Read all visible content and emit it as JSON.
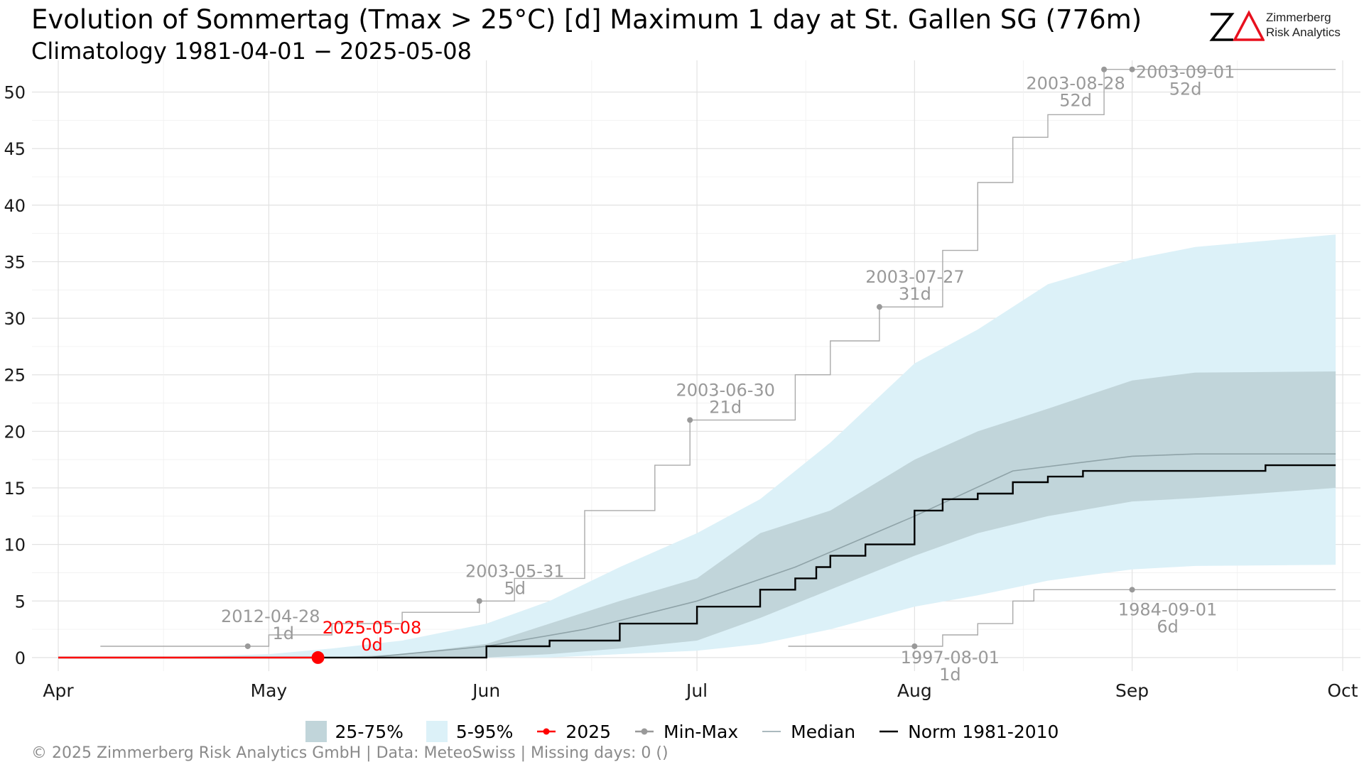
{
  "header": {
    "title": "Evolution of Sommertag (Tmax > 25°C) [d] Maximum 1 day at St. Gallen  SG (776m)",
    "subtitle": "Climatology 1981-04-01 − 2025-05-08"
  },
  "logo": {
    "mark": "ZΔ",
    "line1": "Zimmerberg",
    "line2": "Risk Analytics",
    "colors": {
      "z": "#000000",
      "delta": "#e8101e"
    }
  },
  "footer": {
    "text": "©  2025 Zimmerberg Risk Analytics GmbH | Data: MeteoSwiss | Missing days: 0 ()"
  },
  "legend": [
    {
      "label": "25-75%",
      "kind": "box",
      "color": "#c1d5da"
    },
    {
      "label": "5-95%",
      "kind": "box",
      "color": "#dcf1f8"
    },
    {
      "label": "2025",
      "kind": "point-line",
      "color": "#ff0000"
    },
    {
      "label": "Min-Max",
      "kind": "point-line",
      "color": "#999999"
    },
    {
      "label": "Median",
      "kind": "line",
      "color": "#8fa3a8"
    },
    {
      "label": "Norm 1981-2010",
      "kind": "line",
      "color": "#000000"
    }
  ],
  "chart_data": {
    "type": "area",
    "x_axis": {
      "ticks": [
        {
          "label": "Apr",
          "date": "04-01"
        },
        {
          "label": "May",
          "date": "05-01"
        },
        {
          "label": "Jun",
          "date": "06-01"
        },
        {
          "label": "Jul",
          "date": "07-01"
        },
        {
          "label": "Aug",
          "date": "08-01"
        },
        {
          "label": "Sep",
          "date": "09-01"
        },
        {
          "label": "Oct",
          "date": "10-01"
        }
      ],
      "range": [
        "04-01",
        "10-01"
      ]
    },
    "y_axis": {
      "range": [
        -1.2,
        52.8
      ],
      "ticks": [
        0,
        5,
        10,
        15,
        20,
        25,
        30,
        35,
        40,
        45,
        50
      ]
    },
    "grid": true,
    "legend_position": "bottom",
    "colors": {
      "band_5_95": "#dcf1f8",
      "band_25_75": "#c1d5da",
      "median": "#8fa3a8",
      "norm": "#000000",
      "minmax": "#aaaaaa",
      "minmax_point": "#999999",
      "current": "#ff0000",
      "annotation": "#999999"
    },
    "band_5_95": {
      "x": [
        "04-15",
        "05-01",
        "05-10",
        "05-20",
        "06-01",
        "06-10",
        "06-20",
        "07-01",
        "07-10",
        "07-20",
        "08-01",
        "08-10",
        "08-20",
        "09-01",
        "09-10",
        "09-30"
      ],
      "lower": [
        0,
        0,
        0,
        0,
        0,
        0,
        0.3,
        0.6,
        1.2,
        2.5,
        4.5,
        5.5,
        6.8,
        7.8,
        8.1,
        8.2
      ],
      "upper": [
        0,
        0.3,
        0.8,
        1.5,
        3,
        5,
        8,
        11,
        14,
        19,
        26,
        29,
        33,
        35.2,
        36.3,
        37.4
      ]
    },
    "band_25_75": {
      "x": [
        "05-10",
        "05-20",
        "06-01",
        "06-10",
        "06-20",
        "07-01",
        "07-10",
        "07-20",
        "08-01",
        "08-10",
        "08-20",
        "09-01",
        "09-10",
        "09-30"
      ],
      "lower": [
        0,
        0,
        0,
        0.3,
        0.8,
        1.5,
        3.5,
        6,
        9,
        11,
        12.5,
        13.8,
        14.1,
        15
      ],
      "upper": [
        0,
        0.3,
        1.2,
        3,
        5,
        7,
        11,
        13,
        17.5,
        20,
        22,
        24.5,
        25.2,
        25.3
      ]
    },
    "median": {
      "x": [
        "05-15",
        "06-01",
        "06-15",
        "07-01",
        "07-15",
        "08-01",
        "08-15",
        "09-01",
        "09-10",
        "09-30"
      ],
      "y": [
        0,
        1,
        2.5,
        5,
        8,
        12.5,
        16.5,
        17.8,
        18,
        18
      ]
    },
    "norm": {
      "x": [
        "04-01",
        "06-01",
        "06-10",
        "06-20",
        "07-01",
        "07-10",
        "07-15",
        "07-18",
        "07-20",
        "07-25",
        "08-01",
        "08-05",
        "08-10",
        "08-15",
        "08-20",
        "08-25",
        "09-10",
        "09-20",
        "09-30"
      ],
      "y": [
        0,
        1,
        1.5,
        3,
        4.5,
        6,
        7,
        8,
        9,
        10,
        13,
        14,
        14.5,
        15.5,
        16,
        16.5,
        16.5,
        17,
        17
      ]
    },
    "min_max": {
      "max": {
        "x": [
          "04-07",
          "04-28",
          "05-01",
          "05-10",
          "05-20",
          "05-31",
          "06-05",
          "06-15",
          "06-25",
          "06-30",
          "07-10",
          "07-15",
          "07-20",
          "07-27",
          "08-01",
          "08-05",
          "08-10",
          "08-15",
          "08-20",
          "08-28",
          "09-01",
          "09-30"
        ],
        "y": [
          1,
          1,
          2,
          3,
          4,
          5,
          7,
          13,
          17,
          21,
          21,
          25,
          28,
          31,
          31,
          36,
          42,
          46,
          48,
          52,
          52,
          52
        ]
      },
      "min": {
        "x": [
          "07-14",
          "08-01",
          "08-05",
          "08-10",
          "08-15",
          "08-18",
          "09-01",
          "09-30"
        ],
        "y": [
          1,
          1,
          2,
          3,
          5,
          6,
          6,
          6
        ]
      }
    },
    "current": {
      "label": "2025",
      "x": [
        "04-01",
        "05-08"
      ],
      "y": [
        0,
        0
      ],
      "last": {
        "date_label": "2025-05-08",
        "value_label": "0d",
        "date": "05-08",
        "value": 0
      }
    },
    "annotations": [
      {
        "date_label": "2012-04-28",
        "value_label": "1d",
        "date": "04-28",
        "value": 1,
        "color": "#999999"
      },
      {
        "date_label": "2003-05-31",
        "value_label": "5d",
        "date": "05-31",
        "value": 5,
        "color": "#999999"
      },
      {
        "date_label": "2003-06-30",
        "value_label": "21d",
        "date": "06-30",
        "value": 21,
        "color": "#999999"
      },
      {
        "date_label": "2003-07-27",
        "value_label": "31d",
        "date": "07-27",
        "value": 31,
        "color": "#999999"
      },
      {
        "date_label": "2003-08-28",
        "value_label": "52d",
        "date": "08-28",
        "value": 52,
        "color": "#999999"
      },
      {
        "date_label": "2003-09-01",
        "value_label": "52d",
        "date": "09-01",
        "value": 52,
        "color": "#999999"
      },
      {
        "date_label": "1997-08-01",
        "value_label": "1d",
        "date": "08-01",
        "value": 1,
        "color": "#999999"
      },
      {
        "date_label": "1984-09-01",
        "value_label": "6d",
        "date": "09-01",
        "value": 6,
        "color": "#999999"
      }
    ]
  }
}
